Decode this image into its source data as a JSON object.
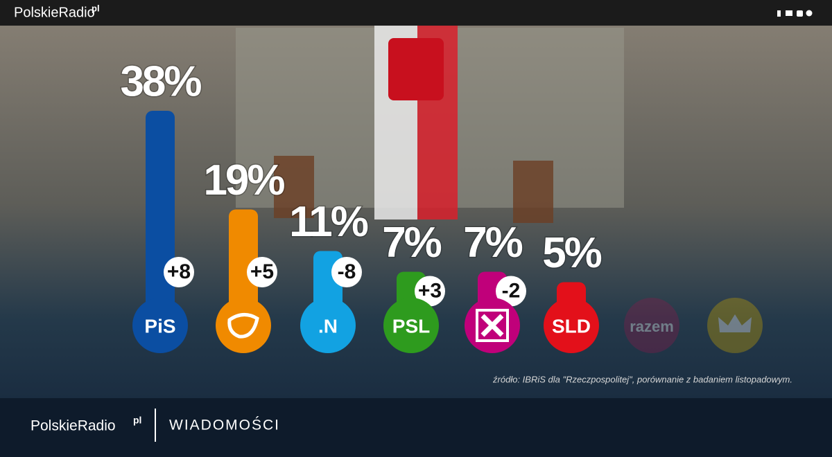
{
  "header": {
    "brand": "PolskieRadio",
    "brand_suffix": "pl"
  },
  "chart_data": {
    "type": "bar",
    "categories": [
      "PiS",
      null,
      ".N",
      "PSL",
      null,
      "SLD",
      "razem",
      null
    ],
    "values": [
      38,
      19,
      11,
      7,
      7,
      5,
      null,
      null
    ],
    "value_labels": [
      "38%",
      "19%",
      "11%",
      "7%",
      "7%",
      "5%",
      null,
      null
    ],
    "changes": [
      8,
      5,
      -8,
      3,
      -2,
      null,
      null,
      null
    ],
    "change_labels": [
      "+8",
      "+5",
      "-8",
      "+3",
      "-2",
      null,
      null,
      null
    ],
    "colors": [
      "#0b4ea2",
      "#f08a00",
      "#12a2e2",
      "#2e9b1e",
      "#c0007a",
      "#e3101a",
      "#8b1a4a",
      "#c9a400"
    ],
    "source": "źródło:  IBRiS dla \"Rzeczpospolitej\", porównanie z badaniem listopadowym."
  },
  "footer": {
    "brand": "PolskieRadio",
    "brand_suffix": "pl",
    "section": "WIADOMOŚCI"
  }
}
